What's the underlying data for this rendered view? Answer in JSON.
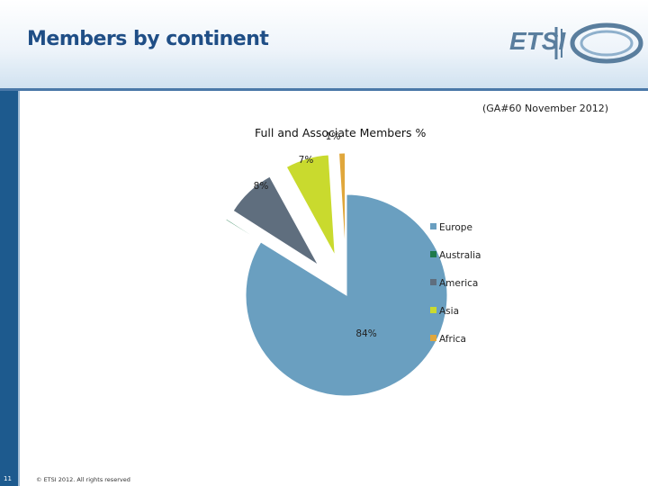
{
  "slide": {
    "title": "Members by continent",
    "subtitle": "(GA#60 November 2012)",
    "page_number": "11",
    "copyright": "© ETSI 2012. All rights reserved",
    "logo_text": "ETSI"
  },
  "chart_data": {
    "type": "pie",
    "title": "Full and Associate Members %",
    "exploded": true,
    "slices": [
      {
        "name": "Europe",
        "value": 84,
        "label": "84%",
        "color": "#6a9fc0"
      },
      {
        "name": "Australia",
        "value": 0.2,
        "label": "",
        "color": "#1f7a4c"
      },
      {
        "name": "America",
        "value": 8,
        "label": "8%",
        "color": "#5f6e7e"
      },
      {
        "name": "Asia",
        "value": 7,
        "label": "7%",
        "color": "#c9da2e"
      },
      {
        "name": "Africa",
        "value": 1,
        "label": "1%",
        "color": "#e0a73c"
      }
    ],
    "legend": {
      "placement": "right",
      "entries": [
        "Europe",
        "Australia",
        "America",
        "Asia",
        "Africa"
      ]
    }
  }
}
